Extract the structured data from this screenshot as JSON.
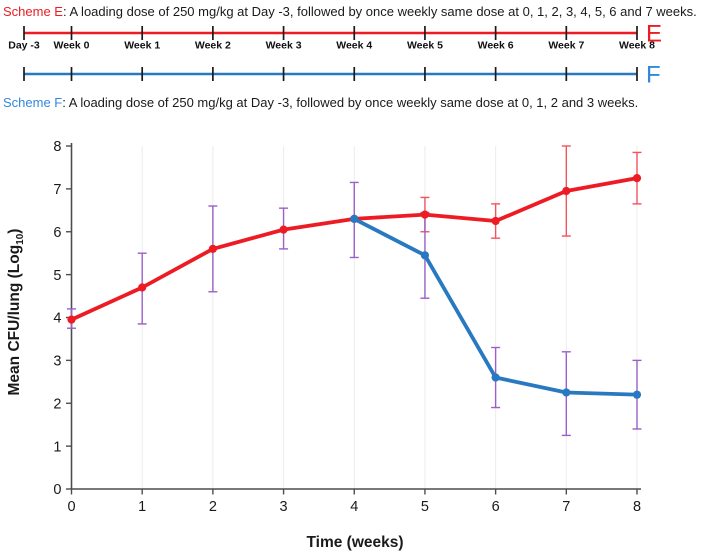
{
  "captions": {
    "scheme_e": {
      "label": "Scheme E",
      "text": ": A loading dose of 250 mg/kg at Day -3, followed by once weekly same dose at 0, 1, 2, 3, 4, 5, 6 and 7 weeks."
    },
    "scheme_f": {
      "label": "Scheme F",
      "text": ": A loading dose of 250 mg/kg at Day -3, followed by once weekly same dose at 0, 1, 2 and 3 weeks."
    }
  },
  "timelines": {
    "tick_labels": [
      "Day -3",
      "Week 0",
      "Week 1",
      "Week 2",
      "Week 3",
      "Week 4",
      "Week 5",
      "Week 6",
      "Week 7",
      "Week 8"
    ],
    "schemes": [
      {
        "letter": "E",
        "line_color": "#ed1c24",
        "letter_color": "#ed1c24",
        "show_tick_labels": true
      },
      {
        "letter": "F",
        "line_color": "#2979c0",
        "letter_color": "#3388dd",
        "show_tick_labels": false
      }
    ]
  },
  "colors": {
    "red": "#ed1c24",
    "blue": "#2979c0",
    "blue_text": "#3388dd",
    "purple_error": "#9a5fc9",
    "red_error": "#f2545b",
    "axis": "#4d4d4d",
    "grid": "#ececec",
    "text": "#1a1a1a"
  },
  "chart_data": {
    "type": "line",
    "title": "",
    "xlabel": "Time (weeks)",
    "ylabel": "Mean CFU/lung (Log10)",
    "ylabel_parts": {
      "main": "Mean CFU/lung (Log",
      "sub": "10",
      "end": ")"
    },
    "xlim": [
      0,
      8
    ],
    "ylim": [
      0,
      8
    ],
    "x_ticks": [
      0,
      1,
      2,
      3,
      4,
      5,
      6,
      7,
      8
    ],
    "y_ticks": [
      0,
      1,
      2,
      3,
      4,
      5,
      6,
      7,
      8
    ],
    "grid": "vertical-light",
    "legend": "none",
    "series": [
      {
        "name": "Scheme E",
        "color": "#ed1c24",
        "x": [
          0,
          1,
          2,
          3,
          4,
          5,
          6,
          7,
          8
        ],
        "y": [
          3.95,
          4.7,
          5.6,
          6.05,
          6.3,
          6.4,
          6.25,
          6.95,
          7.25
        ],
        "err_up": [
          0.25,
          0.8,
          1.0,
          0.5,
          0.85,
          0.4,
          0.4,
          1.05,
          0.6
        ],
        "err_down": [
          0.2,
          0.85,
          1.0,
          0.45,
          0.9,
          0.4,
          0.4,
          1.05,
          0.6
        ],
        "err_colors": [
          "#9a5fc9",
          "#9a5fc9",
          "#9a5fc9",
          "#9a5fc9",
          "#9a5fc9",
          "#f2545b",
          "#f2545b",
          "#f2545b",
          "#f2545b"
        ]
      },
      {
        "name": "Scheme F",
        "color": "#2979c0",
        "x": [
          4,
          5,
          6,
          7,
          8
        ],
        "y": [
          6.3,
          5.45,
          2.6,
          2.25,
          2.2
        ],
        "err_up": [
          0,
          1.0,
          0.7,
          0.95,
          0.8
        ],
        "err_down": [
          0,
          1.0,
          0.7,
          1.0,
          0.8
        ],
        "err_colors": [
          "#9a5fc9",
          "#9a5fc9",
          "#9a5fc9",
          "#9a5fc9",
          "#9a5fc9"
        ]
      }
    ]
  }
}
